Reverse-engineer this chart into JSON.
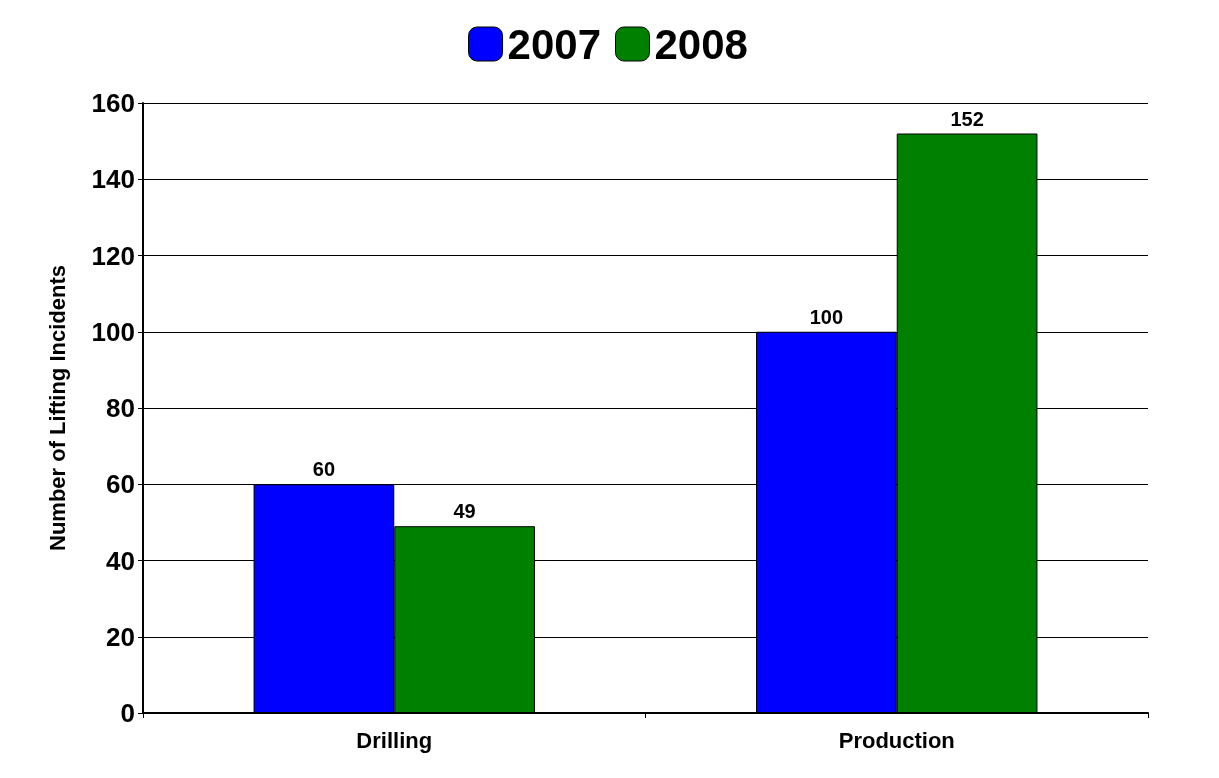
{
  "chart_data": {
    "type": "bar",
    "ylabel": "Number of Lifting Incidents",
    "categories": [
      "Drilling",
      "Production"
    ],
    "series": [
      {
        "name": "2007",
        "color": "#0000ff",
        "values": [
          60,
          100
        ]
      },
      {
        "name": "2008",
        "color": "#008000",
        "values": [
          49,
          152
        ]
      }
    ],
    "ylim": [
      0,
      160
    ],
    "yticks": [
      0,
      20,
      40,
      60,
      80,
      100,
      120,
      140,
      160
    ],
    "grid": "y",
    "legend": "top",
    "data_labels": true
  }
}
